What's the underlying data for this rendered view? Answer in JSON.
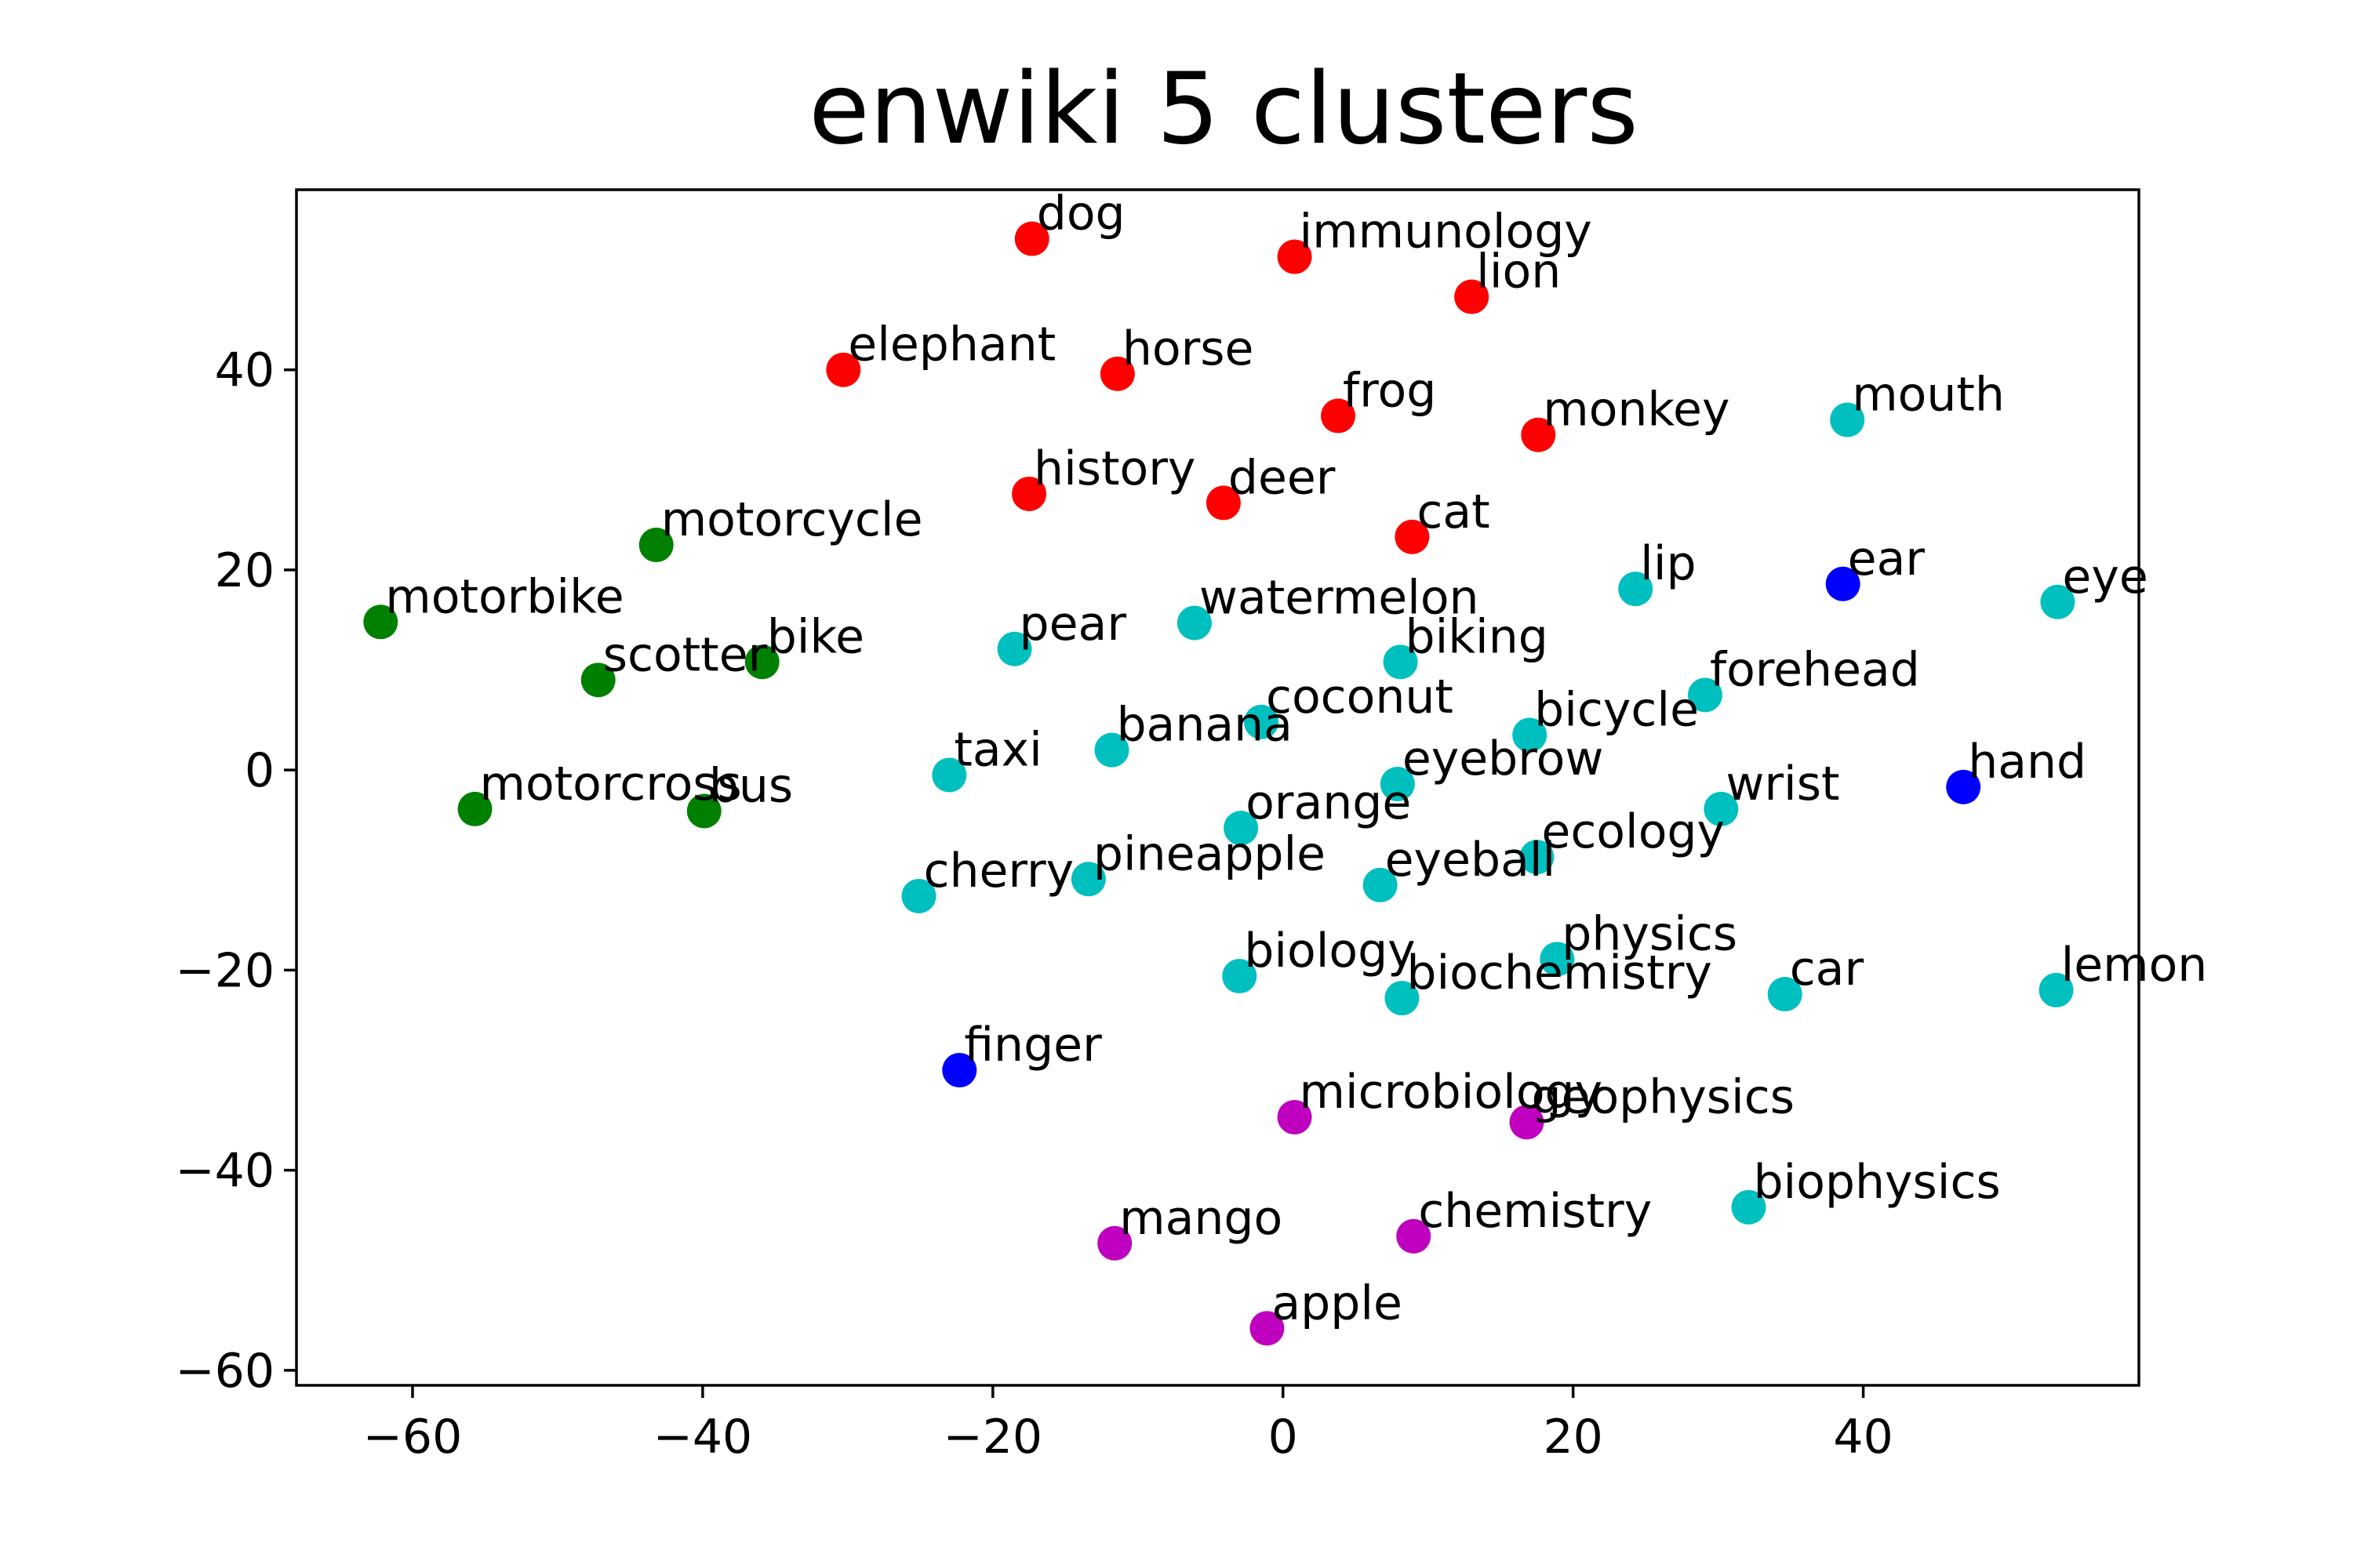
{
  "chart_data": {
    "type": "scatter",
    "title": "enwiki 5 clusters",
    "xlabel": "",
    "ylabel": "",
    "xlim": [
      -68,
      59
    ],
    "ylim": [
      -61.5,
      58
    ],
    "x_ticks": [
      -60,
      -40,
      -20,
      0,
      20,
      40
    ],
    "y_ticks": [
      -60,
      -40,
      -20,
      0,
      20,
      40
    ],
    "x_tick_labels": [
      "−60",
      "−40",
      "−20",
      "0",
      "20",
      "40"
    ],
    "y_tick_labels": [
      "−60",
      "−40",
      "−20",
      "0",
      "20",
      "40"
    ],
    "grid": false,
    "legend": "none",
    "cluster_colors": [
      "#ff0000",
      "#00bfbf",
      "#0000ff",
      "#008000",
      "#bf00bf"
    ],
    "points": [
      {
        "label": "dog",
        "x": -17.3,
        "y": 53.1,
        "cluster": 0
      },
      {
        "label": "immunology",
        "x": 0.8,
        "y": 51.3,
        "cluster": 0
      },
      {
        "label": "lion",
        "x": 13.0,
        "y": 47.3,
        "cluster": 0
      },
      {
        "label": "elephant",
        "x": -30.3,
        "y": 40.0,
        "cluster": 0
      },
      {
        "label": "horse",
        "x": -11.4,
        "y": 39.6,
        "cluster": 0
      },
      {
        "label": "frog",
        "x": 3.8,
        "y": 35.4,
        "cluster": 0
      },
      {
        "label": "monkey",
        "x": 17.6,
        "y": 33.5,
        "cluster": 0
      },
      {
        "label": "history",
        "x": -17.5,
        "y": 27.6,
        "cluster": 0
      },
      {
        "label": "deer",
        "x": -4.1,
        "y": 26.7,
        "cluster": 0
      },
      {
        "label": "cat",
        "x": 8.9,
        "y": 23.3,
        "cluster": 0
      },
      {
        "label": "mouth",
        "x": 38.9,
        "y": 35.0,
        "cluster": 1
      },
      {
        "label": "lip",
        "x": 24.3,
        "y": 18.1,
        "cluster": 1
      },
      {
        "label": "eye",
        "x": 53.4,
        "y": 16.8,
        "cluster": 1
      },
      {
        "label": "watermelon",
        "x": -6.1,
        "y": 14.7,
        "cluster": 1
      },
      {
        "label": "pear",
        "x": -18.5,
        "y": 12.1,
        "cluster": 1
      },
      {
        "label": "biking",
        "x": 8.1,
        "y": 10.8,
        "cluster": 1
      },
      {
        "label": "forehead",
        "x": 29.1,
        "y": 7.5,
        "cluster": 1
      },
      {
        "label": "coconut",
        "x": -1.5,
        "y": 4.8,
        "cluster": 1
      },
      {
        "label": "bicycle",
        "x": 17.0,
        "y": 3.5,
        "cluster": 1
      },
      {
        "label": "banana",
        "x": -11.8,
        "y": 2.0,
        "cluster": 1
      },
      {
        "label": "taxi",
        "x": -23.0,
        "y": -0.5,
        "cluster": 1
      },
      {
        "label": "eyebrow",
        "x": 7.9,
        "y": -1.4,
        "cluster": 1
      },
      {
        "label": "wrist",
        "x": 30.2,
        "y": -3.9,
        "cluster": 1
      },
      {
        "label": "orange",
        "x": -2.9,
        "y": -5.8,
        "cluster": 1
      },
      {
        "label": "ecology",
        "x": 17.5,
        "y": -8.7,
        "cluster": 1
      },
      {
        "label": "pineapple",
        "x": -13.4,
        "y": -10.9,
        "cluster": 1
      },
      {
        "label": "cherry",
        "x": -25.1,
        "y": -12.6,
        "cluster": 1
      },
      {
        "label": "eyeball",
        "x": 6.7,
        "y": -11.5,
        "cluster": 1
      },
      {
        "label": "physics",
        "x": 18.9,
        "y": -18.9,
        "cluster": 1
      },
      {
        "label": "biology",
        "x": -3.0,
        "y": -20.6,
        "cluster": 1
      },
      {
        "label": "biochemistry",
        "x": 8.2,
        "y": -22.8,
        "cluster": 1
      },
      {
        "label": "car",
        "x": 34.6,
        "y": -22.4,
        "cluster": 1
      },
      {
        "label": "lemon",
        "x": 53.3,
        "y": -22.0,
        "cluster": 1
      },
      {
        "label": "biophysics",
        "x": 32.1,
        "y": -43.7,
        "cluster": 1
      },
      {
        "label": "ear",
        "x": 38.6,
        "y": 18.6,
        "cluster": 2
      },
      {
        "label": "hand",
        "x": 46.9,
        "y": -1.7,
        "cluster": 2
      },
      {
        "label": "finger",
        "x": -22.3,
        "y": -30.0,
        "cluster": 2
      },
      {
        "label": "motorcycle",
        "x": -43.2,
        "y": 22.5,
        "cluster": 3
      },
      {
        "label": "motorbike",
        "x": -62.2,
        "y": 14.8,
        "cluster": 3
      },
      {
        "label": "scotter",
        "x": -47.2,
        "y": 9.0,
        "cluster": 3
      },
      {
        "label": "bike",
        "x": -35.9,
        "y": 10.8,
        "cluster": 3
      },
      {
        "label": "motorcross",
        "x": -55.7,
        "y": -3.9,
        "cluster": 3
      },
      {
        "label": "bus",
        "x": -39.9,
        "y": -4.1,
        "cluster": 3
      },
      {
        "label": "microbiology",
        "x": 0.8,
        "y": -34.7,
        "cluster": 4
      },
      {
        "label": "geophysics",
        "x": 16.8,
        "y": -35.2,
        "cluster": 4
      },
      {
        "label": "chemistry",
        "x": 9.0,
        "y": -46.6,
        "cluster": 4
      },
      {
        "label": "mango",
        "x": -11.6,
        "y": -47.3,
        "cluster": 4
      },
      {
        "label": "apple",
        "x": -1.1,
        "y": -55.8,
        "cluster": 4
      }
    ]
  }
}
